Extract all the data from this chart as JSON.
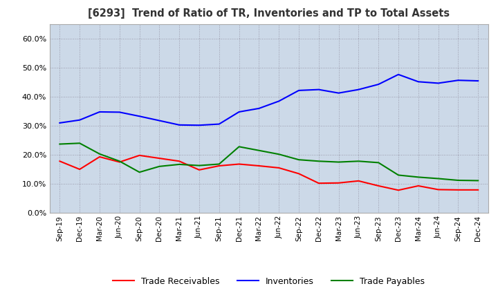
{
  "title": "[6293]  Trend of Ratio of TR, Inventories and TP to Total Assets",
  "x_labels": [
    "Sep-19",
    "Dec-19",
    "Mar-20",
    "Jun-20",
    "Sep-20",
    "Dec-20",
    "Mar-21",
    "Jun-21",
    "Sep-21",
    "Dec-21",
    "Mar-22",
    "Jun-22",
    "Sep-22",
    "Dec-22",
    "Mar-23",
    "Jun-23",
    "Sep-23",
    "Dec-23",
    "Mar-24",
    "Jun-24",
    "Sep-24",
    "Dec-24"
  ],
  "trade_receivables": [
    0.178,
    0.15,
    0.193,
    0.175,
    0.198,
    0.188,
    0.178,
    0.148,
    0.162,
    0.168,
    0.162,
    0.155,
    0.135,
    0.102,
    0.103,
    0.11,
    0.093,
    0.078,
    0.093,
    0.08,
    0.079,
    0.079
  ],
  "inventories": [
    0.31,
    0.32,
    0.348,
    0.347,
    0.333,
    0.318,
    0.303,
    0.302,
    0.306,
    0.348,
    0.36,
    0.385,
    0.422,
    0.425,
    0.413,
    0.425,
    0.443,
    0.477,
    0.452,
    0.447,
    0.457,
    0.455
  ],
  "trade_payables": [
    0.237,
    0.24,
    0.203,
    0.178,
    0.14,
    0.16,
    0.167,
    0.163,
    0.168,
    0.228,
    0.215,
    0.202,
    0.183,
    0.178,
    0.175,
    0.178,
    0.173,
    0.13,
    0.123,
    0.118,
    0.112,
    0.111
  ],
  "tr_color": "#ff0000",
  "inv_color": "#0000ff",
  "tp_color": "#008000",
  "ylim": [
    0.0,
    0.65
  ],
  "yticks": [
    0.0,
    0.1,
    0.2,
    0.3,
    0.4,
    0.5,
    0.6
  ],
  "bg_color": "#ffffff",
  "plot_bg_color": "#ccd9e8",
  "grid_color": "#9999aa",
  "legend_labels": [
    "Trade Receivables",
    "Inventories",
    "Trade Payables"
  ]
}
